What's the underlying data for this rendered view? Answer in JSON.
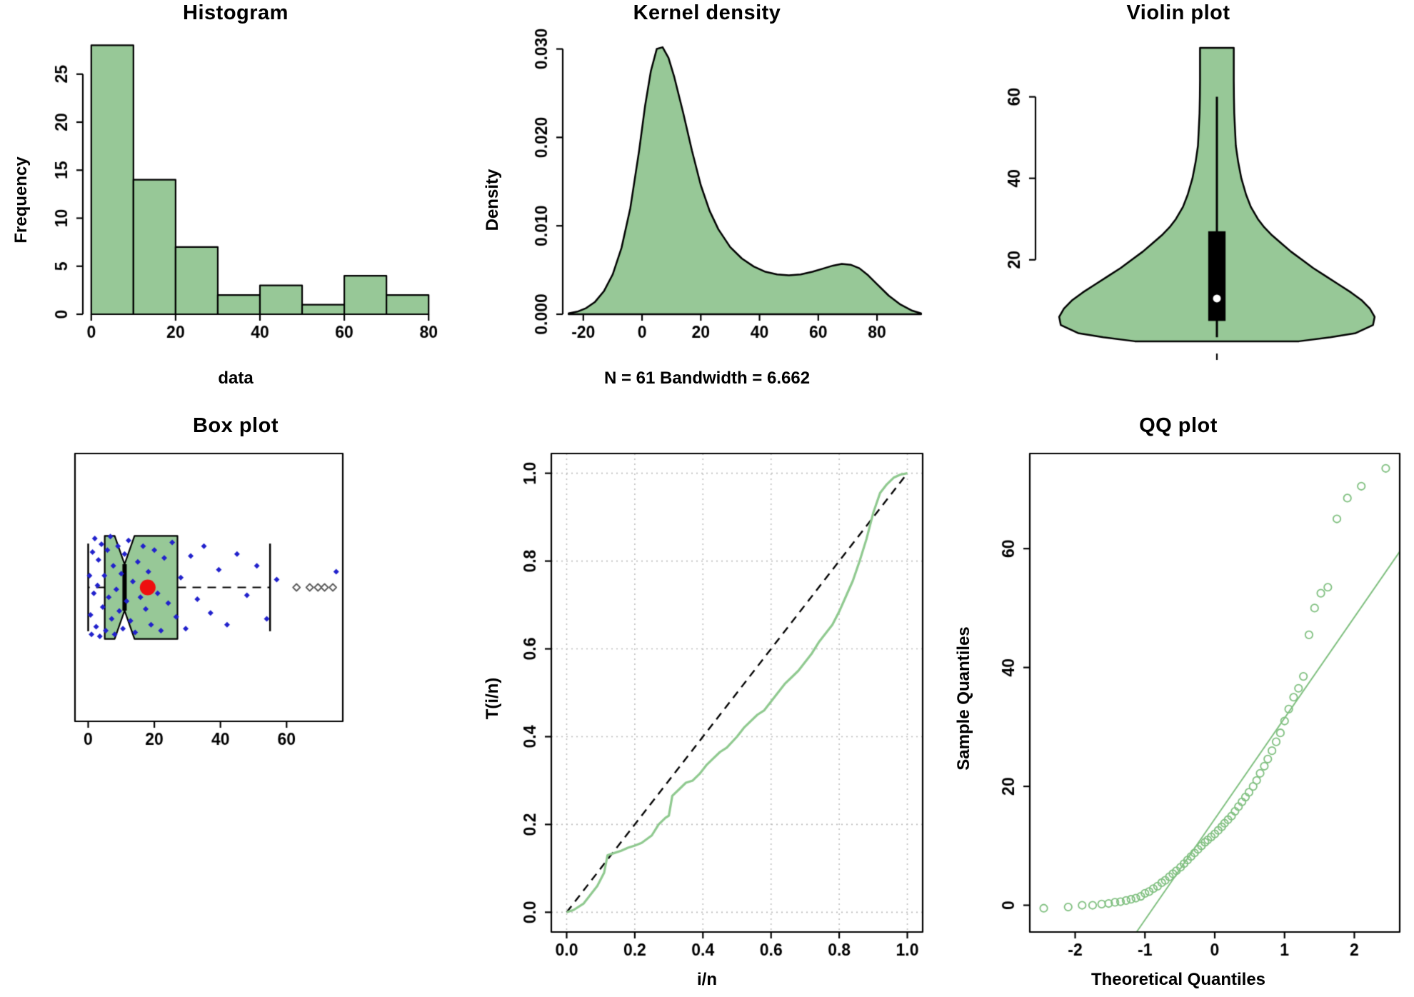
{
  "colors": {
    "panel_bg": "#ffffff",
    "fill_green": "#97C897",
    "outline_black": "#000000",
    "line_green": "#8FC98F",
    "scatter_green": "#7FBF7F",
    "point_blue": "#2121CC",
    "mean_red": "#EE0F0F",
    "outlier_grey": "#5A5A5A",
    "grid_grey": "#BDBDBD"
  },
  "chart_data": [
    {
      "name": "histogram",
      "type": "bar",
      "title": "Histogram",
      "xlabel": "data",
      "ylabel": "Frequency",
      "bin_edges": [
        0,
        10,
        20,
        30,
        40,
        50,
        60,
        70,
        80
      ],
      "values": [
        28,
        14,
        7,
        2,
        3,
        1,
        4,
        2
      ],
      "xticks": [
        0,
        20,
        40,
        60,
        80
      ],
      "yticks": [
        0,
        5,
        10,
        15,
        20,
        25
      ],
      "xlim": [
        -2,
        82
      ],
      "ylim": [
        0,
        29
      ],
      "frame": false
    },
    {
      "name": "kernel-density",
      "type": "area",
      "title": "Kernel density",
      "xlabel": "N = 61   Bandwidth = 6.662",
      "ylabel": "Density",
      "x": [
        -25,
        -22,
        -19,
        -16,
        -13,
        -10,
        -7,
        -4,
        -1,
        1,
        3,
        5,
        7,
        9,
        11,
        14,
        17,
        20,
        23,
        26,
        30,
        34,
        38,
        42,
        46,
        50,
        54,
        58,
        62,
        65,
        68,
        71,
        74,
        77,
        80,
        84,
        88,
        92,
        95
      ],
      "y": [
        0.0001,
        0.0003,
        0.0007,
        0.0014,
        0.0026,
        0.0045,
        0.0075,
        0.012,
        0.0185,
        0.0235,
        0.0275,
        0.03,
        0.0302,
        0.029,
        0.0268,
        0.0228,
        0.0185,
        0.0146,
        0.0117,
        0.0096,
        0.0076,
        0.0063,
        0.0054,
        0.0048,
        0.0045,
        0.0044,
        0.0045,
        0.0048,
        0.0052,
        0.0055,
        0.0057,
        0.0056,
        0.0052,
        0.0044,
        0.0034,
        0.0021,
        0.0011,
        0.0004,
        0.0001
      ],
      "xticks": [
        -20,
        0,
        20,
        40,
        60,
        80
      ],
      "yticks": [
        0,
        0.01,
        0.02,
        0.03
      ],
      "ytick_labels": [
        "0.000",
        "0.010",
        "0.020",
        "0.030"
      ],
      "xlim": [
        -27,
        97
      ],
      "ylim": [
        0,
        0.0315
      ],
      "frame": false
    },
    {
      "name": "violin",
      "type": "violin",
      "title": "Violin plot",
      "xlabel": "",
      "ylabel": "",
      "xticks": [
        0
      ],
      "xtick_labels": [
        ""
      ],
      "yticks": [
        20,
        40,
        60
      ],
      "xlim": [
        -1.15,
        1.15
      ],
      "ylim": [
        -3,
        75
      ],
      "profile": [
        [
          0,
          0.52
        ],
        [
          1,
          0.72
        ],
        [
          2,
          0.88
        ],
        [
          4,
          0.99
        ],
        [
          6,
          1.0
        ],
        [
          8,
          0.97
        ],
        [
          10,
          0.92
        ],
        [
          12,
          0.85
        ],
        [
          14,
          0.77
        ],
        [
          16,
          0.69
        ],
        [
          18,
          0.61
        ],
        [
          20,
          0.54
        ],
        [
          22,
          0.47
        ],
        [
          24,
          0.41
        ],
        [
          26,
          0.35
        ],
        [
          28,
          0.3
        ],
        [
          30,
          0.26
        ],
        [
          33,
          0.215
        ],
        [
          36,
          0.185
        ],
        [
          40,
          0.155
        ],
        [
          44,
          0.135
        ],
        [
          48,
          0.12
        ],
        [
          52,
          0.115
        ],
        [
          56,
          0.11
        ],
        [
          60,
          0.108
        ],
        [
          64,
          0.107
        ],
        [
          68,
          0.107
        ],
        [
          71,
          0.107
        ],
        [
          72,
          0.107
        ]
      ],
      "box": {
        "q1": 5,
        "median": 10.5,
        "q3": 27,
        "whisker_low": 1,
        "whisker_high": 60
      },
      "frame": false
    },
    {
      "name": "box",
      "type": "box",
      "title": "Box plot",
      "xlabel": "",
      "ylabel": "",
      "xticks": [
        0,
        20,
        40,
        60
      ],
      "xlim": [
        -4,
        77
      ],
      "ylim": [
        -1.35,
        1.35
      ],
      "box": {
        "q1": 5,
        "median": 11,
        "q3": 27,
        "notch_low": 8,
        "notch_high": 14,
        "whisker_low": 0,
        "whisker_high": 55,
        "mean": 18,
        "halfheight": 0.52
      },
      "outliers": [
        63,
        67,
        69.5,
        71.5,
        74
      ],
      "points": [
        [
          0.4,
          -0.06
        ],
        [
          0.7,
          0.14
        ],
        [
          1,
          0.24
        ],
        [
          1.3,
          -0.18
        ],
        [
          1.7,
          0.03
        ],
        [
          2,
          -0.25
        ],
        [
          2.4,
          0.2
        ],
        [
          2.8,
          -0.01
        ],
        [
          3.1,
          -0.14
        ],
        [
          3.5,
          0.25
        ],
        [
          4,
          -0.22
        ],
        [
          4.4,
          0.1
        ],
        [
          4.9,
          -0.06
        ],
        [
          5.3,
          0.22
        ],
        [
          5.8,
          -0.19
        ],
        [
          6.2,
          0.05
        ],
        [
          6.7,
          -0.26
        ],
        [
          7.1,
          0.16
        ],
        [
          7.6,
          -0.11
        ],
        [
          8,
          0.24
        ],
        [
          8.5,
          0.01
        ],
        [
          9,
          -0.21
        ],
        [
          9.4,
          0.12
        ],
        [
          10,
          -0.07
        ],
        [
          10.5,
          0.21
        ],
        [
          11,
          -0.17
        ],
        [
          11.6,
          0.07
        ],
        [
          12.2,
          -0.24
        ],
        [
          12.8,
          0.17
        ],
        [
          13.5,
          -0.03
        ],
        [
          14.2,
          0.23
        ],
        [
          15,
          -0.13
        ],
        [
          15.8,
          0.05
        ],
        [
          16.6,
          -0.21
        ],
        [
          17.4,
          0.11
        ],
        [
          18.2,
          -0.08
        ],
        [
          19,
          0.19
        ],
        [
          20,
          -0.19
        ],
        [
          21,
          0.03
        ],
        [
          22,
          0.22
        ],
        [
          23,
          -0.15
        ],
        [
          24.2,
          0.08
        ],
        [
          25.4,
          -0.23
        ],
        [
          26.6,
          0.15
        ],
        [
          28,
          -0.05
        ],
        [
          29.5,
          0.21
        ],
        [
          31,
          -0.16
        ],
        [
          33,
          0.06
        ],
        [
          35,
          -0.21
        ],
        [
          37,
          0.13
        ],
        [
          39.5,
          -0.09
        ],
        [
          42,
          0.19
        ],
        [
          45,
          -0.17
        ],
        [
          48,
          0.04
        ],
        [
          51,
          -0.11
        ],
        [
          54,
          0.16
        ],
        [
          57,
          -0.04
        ],
        [
          75,
          -0.08
        ]
      ],
      "frame": true
    },
    {
      "name": "t-plot",
      "type": "line",
      "title": "",
      "xlabel": "i/n",
      "ylabel": "T(i/n)",
      "xticks": [
        0,
        0.2,
        0.4,
        0.6,
        0.8,
        1
      ],
      "yticks": [
        0,
        0.2,
        0.4,
        0.6,
        0.8,
        1
      ],
      "xtick_labels": [
        "0.0",
        "0.2",
        "0.4",
        "0.6",
        "0.8",
        "1.0"
      ],
      "ytick_labels": [
        "0.0",
        "0.2",
        "0.4",
        "0.6",
        "0.8",
        "1.0"
      ],
      "xlim": [
        -0.045,
        1.045
      ],
      "ylim": [
        -0.045,
        1.045
      ],
      "line": [
        [
          0,
          0
        ],
        [
          0.02,
          0.005
        ],
        [
          0.05,
          0.02
        ],
        [
          0.07,
          0.04
        ],
        [
          0.09,
          0.06
        ],
        [
          0.11,
          0.09
        ],
        [
          0.12,
          0.13
        ],
        [
          0.14,
          0.135
        ],
        [
          0.16,
          0.14
        ],
        [
          0.18,
          0.147
        ],
        [
          0.2,
          0.152
        ],
        [
          0.22,
          0.158
        ],
        [
          0.25,
          0.175
        ],
        [
          0.27,
          0.2
        ],
        [
          0.29,
          0.215
        ],
        [
          0.3,
          0.22
        ],
        [
          0.31,
          0.265
        ],
        [
          0.33,
          0.28
        ],
        [
          0.35,
          0.295
        ],
        [
          0.37,
          0.3
        ],
        [
          0.39,
          0.315
        ],
        [
          0.41,
          0.335
        ],
        [
          0.43,
          0.35
        ],
        [
          0.45,
          0.365
        ],
        [
          0.47,
          0.375
        ],
        [
          0.5,
          0.4
        ],
        [
          0.52,
          0.42
        ],
        [
          0.54,
          0.435
        ],
        [
          0.56,
          0.45
        ],
        [
          0.58,
          0.46
        ],
        [
          0.6,
          0.48
        ],
        [
          0.62,
          0.5
        ],
        [
          0.64,
          0.52
        ],
        [
          0.66,
          0.535
        ],
        [
          0.68,
          0.55
        ],
        [
          0.7,
          0.57
        ],
        [
          0.72,
          0.59
        ],
        [
          0.74,
          0.615
        ],
        [
          0.76,
          0.635
        ],
        [
          0.78,
          0.655
        ],
        [
          0.8,
          0.685
        ],
        [
          0.82,
          0.72
        ],
        [
          0.84,
          0.755
        ],
        [
          0.86,
          0.8
        ],
        [
          0.88,
          0.85
        ],
        [
          0.9,
          0.91
        ],
        [
          0.92,
          0.955
        ],
        [
          0.94,
          0.975
        ],
        [
          0.96,
          0.99
        ],
        [
          0.98,
          0.997
        ],
        [
          1,
          1
        ]
      ],
      "diagonal": true,
      "grid": true,
      "frame": true
    },
    {
      "name": "qq",
      "type": "scatter",
      "title": "QQ plot",
      "xlabel": "Theoretical Quantiles",
      "ylabel": "Sample Quantiles",
      "xticks": [
        -2,
        -1,
        0,
        1,
        2
      ],
      "yticks": [
        0,
        20,
        40,
        60
      ],
      "xlim": [
        -2.65,
        2.65
      ],
      "ylim": [
        -4.5,
        76
      ],
      "points": [
        [
          -2.45,
          -0.5
        ],
        [
          -2.1,
          -0.3
        ],
        [
          -1.9,
          0
        ],
        [
          -1.75,
          0
        ],
        [
          -1.62,
          0.2
        ],
        [
          -1.52,
          0.3
        ],
        [
          -1.43,
          0.5
        ],
        [
          -1.35,
          0.6
        ],
        [
          -1.27,
          0.8
        ],
        [
          -1.2,
          1
        ],
        [
          -1.13,
          1.2
        ],
        [
          -1.06,
          1.5
        ],
        [
          -1,
          2
        ],
        [
          -0.94,
          2.3
        ],
        [
          -0.88,
          2.8
        ],
        [
          -0.82,
          3.2
        ],
        [
          -0.76,
          3.8
        ],
        [
          -0.71,
          4.2
        ],
        [
          -0.65,
          4.8
        ],
        [
          -0.6,
          5.3
        ],
        [
          -0.55,
          5.8
        ],
        [
          -0.49,
          6.4
        ],
        [
          -0.44,
          7
        ],
        [
          -0.39,
          7.6
        ],
        [
          -0.34,
          8.2
        ],
        [
          -0.29,
          8.8
        ],
        [
          -0.24,
          9.4
        ],
        [
          -0.19,
          10
        ],
        [
          -0.14,
          10.6
        ],
        [
          -0.1,
          11
        ],
        [
          -0.05,
          11.5
        ],
        [
          0,
          12
        ],
        [
          0.05,
          12.6
        ],
        [
          0.1,
          13.2
        ],
        [
          0.14,
          13.8
        ],
        [
          0.19,
          14.4
        ],
        [
          0.24,
          15
        ],
        [
          0.29,
          15.8
        ],
        [
          0.34,
          16.6
        ],
        [
          0.39,
          17.4
        ],
        [
          0.44,
          18.2
        ],
        [
          0.49,
          19
        ],
        [
          0.55,
          20
        ],
        [
          0.6,
          21
        ],
        [
          0.65,
          22.2
        ],
        [
          0.71,
          23.4
        ],
        [
          0.76,
          24.6
        ],
        [
          0.82,
          26
        ],
        [
          0.88,
          27.5
        ],
        [
          0.94,
          29
        ],
        [
          1,
          31
        ],
        [
          1.06,
          33
        ],
        [
          1.13,
          35
        ],
        [
          1.2,
          36.5
        ],
        [
          1.27,
          38.5
        ],
        [
          1.35,
          45.5
        ],
        [
          1.43,
          50
        ],
        [
          1.52,
          52.5
        ],
        [
          1.62,
          53.5
        ],
        [
          1.75,
          65
        ],
        [
          1.9,
          68.5
        ],
        [
          2.1,
          70.5
        ],
        [
          2.45,
          73.5
        ]
      ],
      "line": [
        [
          -1.12,
          -4.5
        ],
        [
          2.65,
          59.5
        ]
      ],
      "frame": true
    }
  ]
}
